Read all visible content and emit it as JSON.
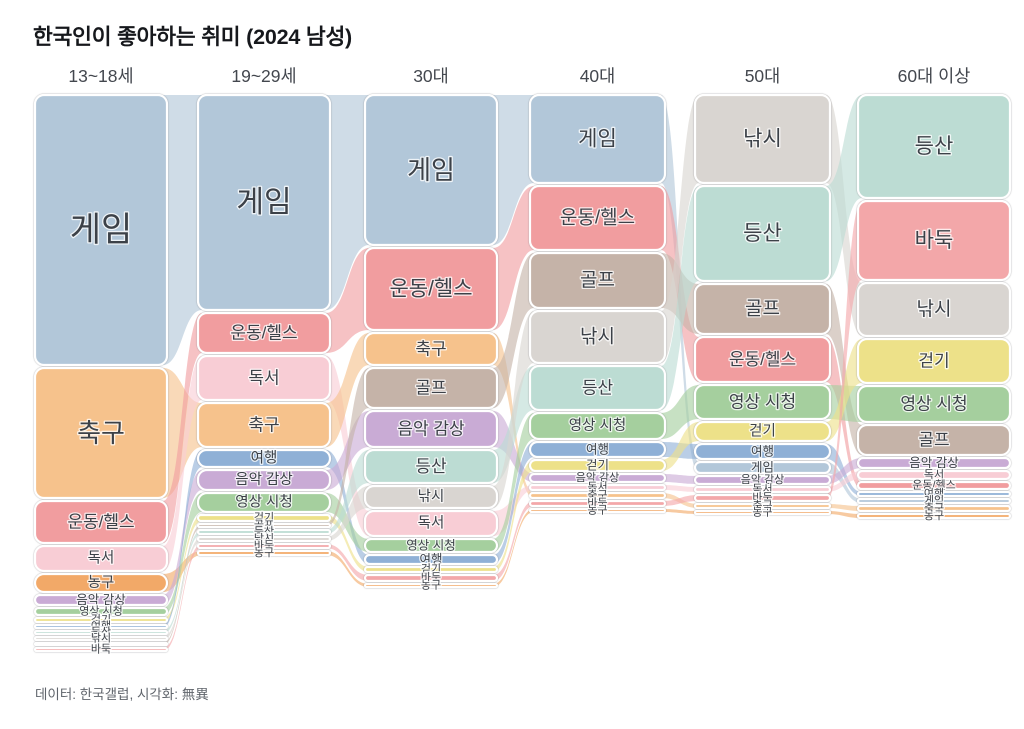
{
  "title": "한국인이 좋아하는 취미 (2024 남성)",
  "footer": "데이터: 한국갤럽, 시각화: 無異",
  "chart_data": {
    "type": "alluvial",
    "title": "한국인이 좋아하는 취미 (2024 남성)",
    "subtitle": "",
    "columns": [
      "13~18세",
      "19~29세",
      "30대",
      "40대",
      "50대",
      "60대 이상"
    ],
    "values_shown": false,
    "legend": "labels-on-bands",
    "grid": false,
    "hobby_colors": {
      "게임": "#b2c7d9",
      "축구": "#f6c28c",
      "운동/헬스": "#f19d9f",
      "독서": "#f8cdd5",
      "농구": "#f2a968",
      "음악 감상": "#c9abd5",
      "영상 시청": "#a5cf9e",
      "여행": "#8fb0d6",
      "걷기": "#ede189",
      "등산": "#bcdcd3",
      "낚시": "#d9d5d1",
      "골프": "#c5b3a8",
      "바둑": "#f3a7a9"
    },
    "rankings": [
      {
        "age": "13~18세",
        "bands": [
          [
            "게임",
            270
          ],
          [
            "축구",
            130
          ],
          [
            "운동/헬스",
            42
          ],
          [
            "독서",
            25
          ],
          [
            "농구",
            18
          ],
          [
            "음악 감상",
            10
          ],
          [
            "영상 시청",
            7
          ],
          [
            "걷기",
            4
          ],
          [
            "여행",
            3
          ],
          [
            "등산",
            3
          ],
          [
            "낚시",
            3
          ],
          [
            "골프",
            2
          ],
          [
            "바둑",
            3
          ]
        ]
      },
      {
        "age": "19~29세",
        "bands": [
          [
            "게임",
            215
          ],
          [
            "운동/헬스",
            40
          ],
          [
            "독서",
            44
          ],
          [
            "축구",
            44
          ],
          [
            "여행",
            17
          ],
          [
            "음악 감상",
            20
          ],
          [
            "영상 시청",
            19
          ],
          [
            "걷기",
            6
          ],
          [
            "골프",
            3
          ],
          [
            "등산",
            4
          ],
          [
            "낚시",
            4
          ],
          [
            "바둑",
            4
          ],
          [
            "농구",
            4
          ]
        ]
      },
      {
        "age": "30대",
        "bands": [
          [
            "게임",
            150
          ],
          [
            "운동/헬스",
            82
          ],
          [
            "축구",
            32
          ],
          [
            "골프",
            40
          ],
          [
            "음악 감상",
            36
          ],
          [
            "등산",
            33
          ],
          [
            "낚시",
            22
          ],
          [
            "독서",
            25
          ],
          [
            "영상 시청",
            13
          ],
          [
            "여행",
            9
          ],
          [
            "걷기",
            5
          ],
          [
            "바둑",
            6
          ],
          [
            "농구",
            3
          ]
        ]
      },
      {
        "age": "40대",
        "bands": [
          [
            "게임",
            88
          ],
          [
            "운동/헬스",
            64
          ],
          [
            "골프",
            55
          ],
          [
            "낚시",
            52
          ],
          [
            "등산",
            44
          ],
          [
            "영상 시청",
            26
          ],
          [
            "여행",
            15
          ],
          [
            "걷기",
            11
          ],
          [
            "음악 감상",
            8
          ],
          [
            "독서",
            5
          ],
          [
            "축구",
            5
          ],
          [
            "바둑",
            5
          ],
          [
            "농구",
            3
          ]
        ]
      },
      {
        "age": "50대",
        "bands": [
          [
            "낚시",
            88
          ],
          [
            "등산",
            95
          ],
          [
            "골프",
            50
          ],
          [
            "운동/헬스",
            45
          ],
          [
            "영상 시청",
            34
          ],
          [
            "걷기",
            19
          ],
          [
            "여행",
            15
          ],
          [
            "게임",
            11
          ],
          [
            "음악 감상",
            8
          ],
          [
            "독서",
            5
          ],
          [
            "바둑",
            6
          ],
          [
            "축구",
            4
          ],
          [
            "농구",
            3
          ]
        ]
      },
      {
        "age": "60대 이상",
        "bands": [
          [
            "등산",
            103
          ],
          [
            "바둑",
            79
          ],
          [
            "낚시",
            53
          ],
          [
            "걷기",
            44
          ],
          [
            "영상 시청",
            36
          ],
          [
            "골프",
            30
          ],
          [
            "음악 감상",
            10
          ],
          [
            "독서",
            8
          ],
          [
            "운동/헬스",
            7
          ],
          [
            "여행",
            4
          ],
          [
            "게임",
            4
          ],
          [
            "축구",
            5
          ],
          [
            "농구",
            4
          ]
        ]
      }
    ]
  }
}
